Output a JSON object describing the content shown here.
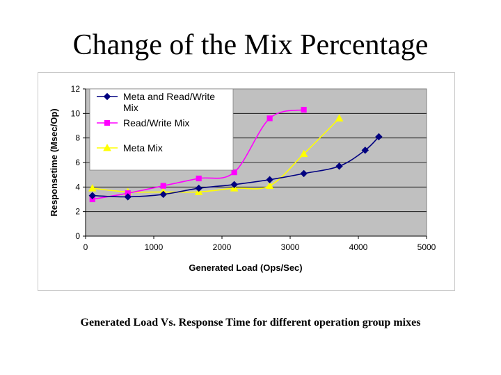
{
  "slide": {
    "title": "Change of the Mix Percentage",
    "caption": "Generated Load Vs. Response Time for different operation group mixes"
  },
  "chart_data": {
    "type": "line",
    "title": "",
    "xlabel": "Generated Load (Ops/Sec)",
    "ylabel": "Responsetime (Msec/Op)",
    "xlim": [
      0,
      5000
    ],
    "ylim": [
      0,
      12
    ],
    "xticks": [
      0,
      1000,
      2000,
      3000,
      4000,
      5000
    ],
    "yticks": [
      0,
      2,
      4,
      6,
      8,
      10,
      12
    ],
    "grid": true,
    "legend_position": "top-left",
    "plot_background": "#c0c0c0",
    "series": [
      {
        "name": "Meta and Read/Write Mix",
        "legend_lines": [
          "Meta and Read/Write",
          "Mix"
        ],
        "color": "#000080",
        "marker": "diamond",
        "x": [
          100,
          620,
          1140,
          1660,
          2180,
          2700,
          3200,
          3720,
          4100,
          4300
        ],
        "y": [
          3.3,
          3.2,
          3.4,
          3.9,
          4.2,
          4.6,
          5.1,
          5.7,
          7.0,
          8.1
        ]
      },
      {
        "name": "Read/Write Mix",
        "legend_lines": [
          "Read/Write Mix"
        ],
        "color": "#ff00ff",
        "marker": "square",
        "x": [
          100,
          620,
          1140,
          1660,
          2180,
          2700,
          3200
        ],
        "y": [
          3.0,
          3.5,
          4.1,
          4.7,
          5.2,
          9.6,
          10.3
        ]
      },
      {
        "name": "Meta Mix",
        "legend_lines": [
          "Meta Mix"
        ],
        "color": "#ffff00",
        "marker": "triangle",
        "x": [
          100,
          620,
          1140,
          1660,
          2180,
          2700,
          3200,
          3720
        ],
        "y": [
          3.9,
          3.6,
          3.6,
          3.6,
          3.9,
          4.1,
          6.7,
          9.6
        ]
      }
    ]
  }
}
